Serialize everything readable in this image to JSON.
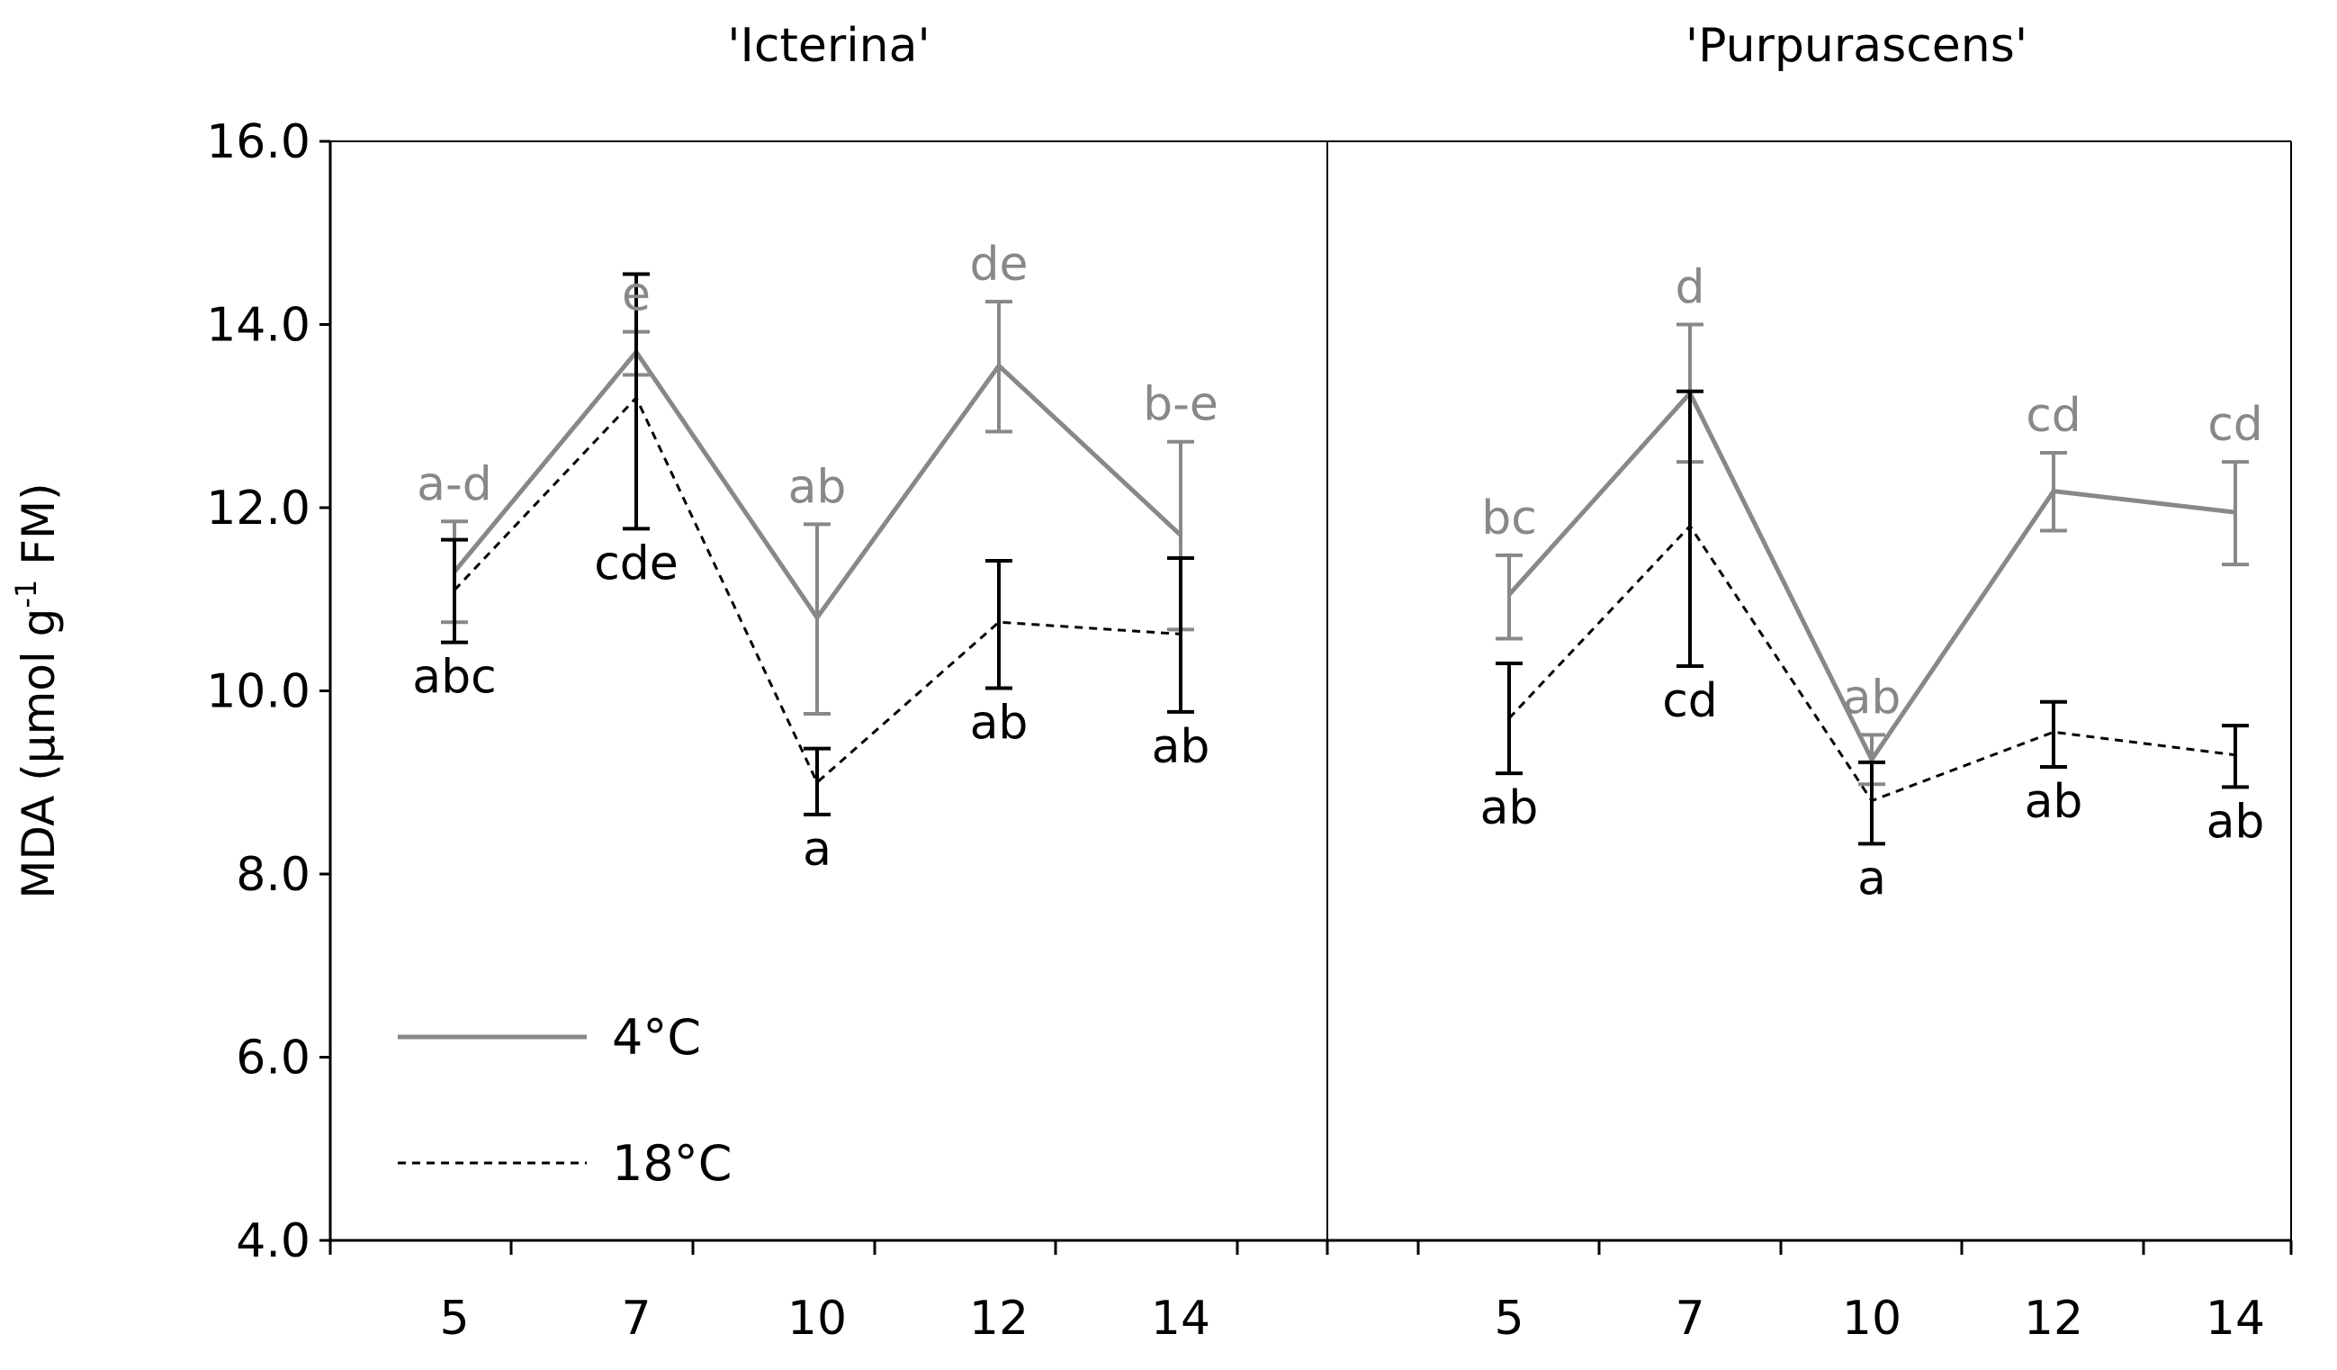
{
  "chart_data": {
    "type": "line",
    "ylabel": "MDA (µmol g",
    "ylabel_sup": "-1",
    "ylabel_tail": " FM)",
    "ylim": [
      4.0,
      16.0
    ],
    "yticks": [
      "4.0",
      "6.0",
      "8.0",
      "10.0",
      "12.0",
      "14.0",
      "16.0"
    ],
    "grid": false,
    "legend_position": "bottom-left",
    "legend": [
      {
        "label": "4°C",
        "color": "#888888",
        "style": "solid"
      },
      {
        "label": "18°C",
        "color": "#000000",
        "style": "dashed"
      }
    ],
    "panels": [
      {
        "title": "'Icterina'",
        "categories": [
          "5",
          "7",
          "10",
          "12",
          "14"
        ],
        "series": [
          {
            "name": "4°C",
            "color": "#888888",
            "values": [
              11.3,
              13.7,
              10.8,
              13.55,
              11.7
            ],
            "err_upper": [
              11.85,
              13.92,
              11.82,
              14.25,
              12.72
            ],
            "err_lower": [
              10.75,
              13.45,
              9.75,
              12.83,
              10.67
            ],
            "letters": [
              "a-d",
              "e",
              "ab",
              "de",
              "b-e"
            ]
          },
          {
            "name": "18°C",
            "color": "#000000",
            "values": [
              11.1,
              13.2,
              9.0,
              10.75,
              10.62
            ],
            "err_upper": [
              11.65,
              14.55,
              9.37,
              11.42,
              11.45
            ],
            "err_lower": [
              10.53,
              11.77,
              8.65,
              10.03,
              9.77
            ],
            "letters": [
              "abc",
              "cde",
              "a",
              "ab",
              "ab"
            ]
          }
        ]
      },
      {
        "title": "'Purpurascens'",
        "categories": [
          "5",
          "7",
          "10",
          "12",
          "14"
        ],
        "series": [
          {
            "name": "4°C",
            "color": "#888888",
            "values": [
              11.05,
              13.25,
              9.25,
              12.18,
              11.95
            ],
            "err_upper": [
              11.48,
              14.0,
              9.52,
              12.6,
              12.5
            ],
            "err_lower": [
              10.57,
              12.5,
              8.98,
              11.75,
              11.38
            ],
            "letters": [
              "bc",
              "d",
              "ab",
              "cd",
              "cd"
            ]
          },
          {
            "name": "18°C",
            "color": "#000000",
            "values": [
              9.7,
              11.8,
              8.8,
              9.55,
              9.3
            ],
            "err_upper": [
              10.3,
              13.27,
              9.22,
              9.88,
              9.62
            ],
            "err_lower": [
              9.1,
              10.27,
              8.33,
              9.17,
              8.95
            ],
            "letters": [
              "ab",
              "cd",
              "a",
              "ab",
              "ab"
            ]
          }
        ]
      }
    ]
  }
}
